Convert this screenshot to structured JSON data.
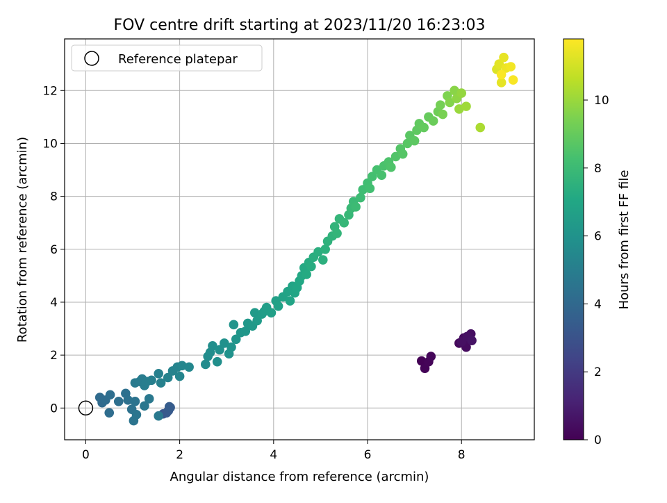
{
  "chart_data": {
    "type": "scatter",
    "title": "FOV centre drift starting at 2023/11/20 16:23:03",
    "xlabel": "Angular distance from reference (arcmin)",
    "ylabel": "Rotation from reference (arcmin)",
    "xlim": [
      -0.45,
      9.55
    ],
    "ylim": [
      -1.2,
      13.95
    ],
    "xticks": [
      "0",
      "2",
      "4",
      "6",
      "8"
    ],
    "yticks": [
      "0",
      "2",
      "4",
      "6",
      "8",
      "10",
      "12"
    ],
    "grid": true,
    "legend": {
      "placement": "top-left",
      "entries": [
        "Reference platepar"
      ]
    },
    "reference_point": {
      "x": 0,
      "y": 0
    },
    "colorbar": {
      "label": "Hours from first FF file",
      "range": [
        0,
        11.8
      ],
      "ticks": [
        "0",
        "2",
        "4",
        "6",
        "8",
        "10"
      ],
      "colormap": "viridis"
    },
    "points": [
      [
        7.15,
        1.78,
        0.05
      ],
      [
        7.22,
        1.5,
        0.1
      ],
      [
        7.3,
        1.75,
        0.15
      ],
      [
        7.35,
        1.95,
        0.2
      ],
      [
        7.95,
        2.45,
        0.25
      ],
      [
        8.05,
        2.65,
        0.3
      ],
      [
        8.1,
        2.3,
        0.35
      ],
      [
        8.15,
        2.6,
        0.4
      ],
      [
        8.2,
        2.8,
        0.45
      ],
      [
        8.0,
        2.5,
        0.5
      ],
      [
        8.12,
        2.7,
        0.55
      ],
      [
        8.22,
        2.55,
        0.6
      ],
      [
        1.65,
        -0.22,
        3.2
      ],
      [
        1.72,
        -0.18,
        3.25
      ],
      [
        1.76,
        -0.1,
        3.3
      ],
      [
        1.8,
        0.02,
        3.35
      ],
      [
        1.78,
        0.05,
        3.4
      ],
      [
        0.35,
        0.2,
        4.05
      ],
      [
        0.3,
        0.4,
        4.1
      ],
      [
        0.42,
        0.3,
        4.15
      ],
      [
        0.5,
        -0.18,
        4.2
      ],
      [
        0.52,
        0.5,
        4.25
      ],
      [
        0.7,
        0.25,
        4.3
      ],
      [
        0.85,
        0.55,
        4.35
      ],
      [
        0.9,
        0.3,
        4.4
      ],
      [
        0.98,
        -0.05,
        4.45
      ],
      [
        1.05,
        0.25,
        4.5
      ],
      [
        1.02,
        -0.48,
        4.55
      ],
      [
        1.08,
        -0.25,
        4.6
      ],
      [
        1.25,
        0.08,
        4.65
      ],
      [
        1.35,
        0.35,
        4.7
      ],
      [
        1.55,
        -0.3,
        4.75
      ],
      [
        1.05,
        0.95,
        4.8
      ],
      [
        1.15,
        1.0,
        4.85
      ],
      [
        1.2,
        1.1,
        4.9
      ],
      [
        1.25,
        0.85,
        4.95
      ],
      [
        1.3,
        1.0,
        5.0
      ],
      [
        1.4,
        1.05,
        5.05
      ],
      [
        1.55,
        1.3,
        5.1
      ],
      [
        1.6,
        0.95,
        5.15
      ],
      [
        1.75,
        1.15,
        5.2
      ],
      [
        1.85,
        1.4,
        5.25
      ],
      [
        1.95,
        1.55,
        5.3
      ],
      [
        2.0,
        1.2,
        5.35
      ],
      [
        2.05,
        1.6,
        5.4
      ],
      [
        2.2,
        1.55,
        5.45
      ],
      [
        2.55,
        1.65,
        5.6
      ],
      [
        2.6,
        1.95,
        5.65
      ],
      [
        2.65,
        2.1,
        5.7
      ],
      [
        2.7,
        2.35,
        5.75
      ],
      [
        2.8,
        1.75,
        5.8
      ],
      [
        2.85,
        2.2,
        5.85
      ],
      [
        2.95,
        2.45,
        5.9
      ],
      [
        3.05,
        2.05,
        5.95
      ],
      [
        3.1,
        2.3,
        6.0
      ],
      [
        3.15,
        3.15,
        6.05
      ],
      [
        3.2,
        2.6,
        6.1
      ],
      [
        3.3,
        2.85,
        6.15
      ],
      [
        3.4,
        2.9,
        6.2
      ],
      [
        3.45,
        3.2,
        6.25
      ],
      [
        3.55,
        3.1,
        6.3
      ],
      [
        3.6,
        3.6,
        6.35
      ],
      [
        3.65,
        3.3,
        6.4
      ],
      [
        3.75,
        3.55,
        6.45
      ],
      [
        3.8,
        3.65,
        6.5
      ],
      [
        3.85,
        3.8,
        6.55
      ],
      [
        3.95,
        3.6,
        6.6
      ],
      [
        4.05,
        4.05,
        6.65
      ],
      [
        4.1,
        3.85,
        6.7
      ],
      [
        4.2,
        4.2,
        6.75
      ],
      [
        4.3,
        4.4,
        6.8
      ],
      [
        4.35,
        4.05,
        6.85
      ],
      [
        4.4,
        4.6,
        6.9
      ],
      [
        4.45,
        4.35,
        6.95
      ],
      [
        4.5,
        4.55,
        7.0
      ],
      [
        4.55,
        4.8,
        7.05
      ],
      [
        4.6,
        5.0,
        7.1
      ],
      [
        4.65,
        5.3,
        7.15
      ],
      [
        4.7,
        5.05,
        7.2
      ],
      [
        4.75,
        5.5,
        7.25
      ],
      [
        4.8,
        5.35,
        7.3
      ],
      [
        4.85,
        5.7,
        7.35
      ],
      [
        4.95,
        5.9,
        7.4
      ],
      [
        5.05,
        5.6,
        7.45
      ],
      [
        5.1,
        6.0,
        7.5
      ],
      [
        5.15,
        6.3,
        7.55
      ],
      [
        5.25,
        6.5,
        7.6
      ],
      [
        5.3,
        6.85,
        7.65
      ],
      [
        5.35,
        6.6,
        7.7
      ],
      [
        5.4,
        7.15,
        7.75
      ],
      [
        5.5,
        7.0,
        7.8
      ],
      [
        5.6,
        7.3,
        7.85
      ],
      [
        5.65,
        7.55,
        7.9
      ],
      [
        5.7,
        7.8,
        7.95
      ],
      [
        5.75,
        7.6,
        8.0
      ],
      [
        5.85,
        7.95,
        8.05
      ],
      [
        5.9,
        8.25,
        8.1
      ],
      [
        6.0,
        8.5,
        8.15
      ],
      [
        6.05,
        8.3,
        8.2
      ],
      [
        6.1,
        8.75,
        8.25
      ],
      [
        6.2,
        9.0,
        8.3
      ],
      [
        6.3,
        8.8,
        8.35
      ],
      [
        6.35,
        9.15,
        8.4
      ],
      [
        6.45,
        9.3,
        8.45
      ],
      [
        6.5,
        9.1,
        8.5
      ],
      [
        6.6,
        9.5,
        8.55
      ],
      [
        6.7,
        9.8,
        8.6
      ],
      [
        6.75,
        9.6,
        8.65
      ],
      [
        6.85,
        10.0,
        8.7
      ],
      [
        6.9,
        10.3,
        8.75
      ],
      [
        7.0,
        10.1,
        8.8
      ],
      [
        7.05,
        10.5,
        8.85
      ],
      [
        7.1,
        10.75,
        8.9
      ],
      [
        7.2,
        10.6,
        8.95
      ],
      [
        7.3,
        11.0,
        9.0
      ],
      [
        7.4,
        10.85,
        9.1
      ],
      [
        7.5,
        11.2,
        9.2
      ],
      [
        7.55,
        11.45,
        9.3
      ],
      [
        7.6,
        11.1,
        9.4
      ],
      [
        7.7,
        11.8,
        9.5
      ],
      [
        7.75,
        11.55,
        9.6
      ],
      [
        7.85,
        12.0,
        9.7
      ],
      [
        7.9,
        11.7,
        9.8
      ],
      [
        8.0,
        11.9,
        9.9
      ],
      [
        7.95,
        11.3,
        10.0
      ],
      [
        8.1,
        11.4,
        10.1
      ],
      [
        8.4,
        10.6,
        10.3
      ],
      [
        8.75,
        12.8,
        11.2
      ],
      [
        8.8,
        13.0,
        11.3
      ],
      [
        8.85,
        12.3,
        11.35
      ],
      [
        8.9,
        13.25,
        11.4
      ],
      [
        8.95,
        12.85,
        11.5
      ],
      [
        9.05,
        12.9,
        11.6
      ],
      [
        9.1,
        12.4,
        11.7
      ],
      [
        8.85,
        12.6,
        11.75
      ]
    ]
  }
}
